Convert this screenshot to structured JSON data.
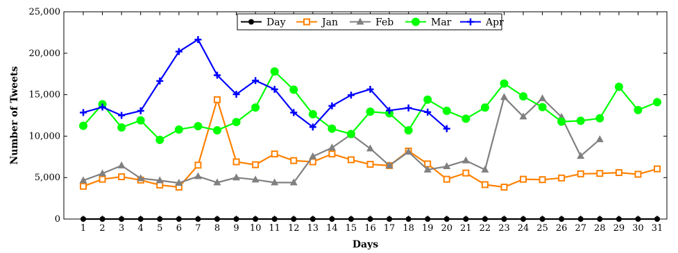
{
  "chart_data": {
    "type": "line",
    "title": "",
    "xlabel": "Days",
    "ylabel": "Number of Tweets",
    "xlim": [
      0.5,
      31.5
    ],
    "ylim": [
      0,
      25000
    ],
    "x_ticks": [
      "1",
      "2",
      "3",
      "4",
      "5",
      "6",
      "7",
      "8",
      "9",
      "10",
      "11",
      "12",
      "13",
      "14",
      "15",
      "16",
      "17",
      "18",
      "19",
      "20",
      "21",
      "22",
      "23",
      "24",
      "25",
      "26",
      "27",
      "28",
      "29",
      "30",
      "31"
    ],
    "y_ticks": [
      {
        "value": 0,
        "label": "0"
      },
      {
        "value": 5000,
        "label": "5,000"
      },
      {
        "value": 10000,
        "label": "10,000"
      },
      {
        "value": 15000,
        "label": "15,000"
      },
      {
        "value": 20000,
        "label": "20,000"
      },
      {
        "value": 25000,
        "label": "25,000"
      }
    ],
    "grid": false,
    "legend_position": "top-center",
    "series": [
      {
        "name": "Day",
        "color": "#000000",
        "marker": "circle",
        "x": [
          1,
          2,
          3,
          4,
          5,
          6,
          7,
          8,
          9,
          10,
          11,
          12,
          13,
          14,
          15,
          16,
          17,
          18,
          19,
          20,
          21,
          22,
          23,
          24,
          25,
          26,
          27,
          28,
          29,
          30,
          31
        ],
        "values": [
          0,
          0,
          0,
          0,
          0,
          0,
          0,
          0,
          0,
          0,
          0,
          0,
          0,
          0,
          0,
          0,
          0,
          0,
          0,
          0,
          0,
          0,
          0,
          0,
          0,
          0,
          0,
          0,
          0,
          0,
          0
        ]
      },
      {
        "name": "Jan",
        "color": "#ff8000",
        "marker": "square",
        "x": [
          1,
          2,
          3,
          4,
          5,
          6,
          7,
          8,
          9,
          10,
          11,
          12,
          13,
          14,
          15,
          16,
          17,
          18,
          19,
          20,
          21,
          22,
          23,
          24,
          25,
          26,
          27,
          28,
          29,
          30,
          31
        ],
        "values": [
          3950,
          4800,
          5100,
          4700,
          4100,
          3850,
          6500,
          14400,
          6900,
          6550,
          7850,
          7050,
          6900,
          7850,
          7150,
          6600,
          6450,
          8200,
          6650,
          4800,
          5550,
          4150,
          3850,
          4800,
          4750,
          4950,
          5450,
          5500,
          5600,
          5400,
          6050
        ]
      },
      {
        "name": "Feb",
        "color": "#808080",
        "marker": "triangle",
        "x": [
          1,
          2,
          3,
          4,
          5,
          6,
          7,
          8,
          9,
          10,
          11,
          12,
          13,
          14,
          15,
          16,
          17,
          18,
          19,
          20,
          21,
          22,
          23,
          24,
          25,
          26,
          27,
          28
        ],
        "values": [
          4650,
          5500,
          6450,
          4900,
          4650,
          4350,
          5150,
          4400,
          5000,
          4750,
          4400,
          4400,
          7550,
          8600,
          10200,
          8500,
          6450,
          8100,
          5950,
          6350,
          7050,
          5950,
          14700,
          12350,
          14550,
          12300,
          7600,
          9600
        ]
      },
      {
        "name": "Mar",
        "color": "#00ff00",
        "marker": "circle",
        "x": [
          1,
          2,
          3,
          4,
          5,
          6,
          7,
          8,
          9,
          10,
          11,
          12,
          13,
          14,
          15,
          16,
          17,
          18,
          19,
          20,
          21,
          22,
          23,
          24,
          25,
          26,
          27,
          28,
          29,
          30,
          31
        ],
        "values": [
          11250,
          13850,
          11050,
          11900,
          9550,
          10800,
          11200,
          10700,
          11700,
          13450,
          17800,
          15600,
          12650,
          10900,
          10250,
          12950,
          12750,
          10700,
          14400,
          13050,
          12100,
          13450,
          16350,
          14800,
          13500,
          11750,
          11850,
          12150,
          15950,
          13150,
          14100
        ]
      },
      {
        "name": "Apr",
        "color": "#0000ff",
        "marker": "plus",
        "x": [
          1,
          2,
          3,
          4,
          5,
          6,
          7,
          8,
          9,
          10,
          11,
          12,
          13,
          14,
          15,
          16,
          17,
          18,
          19,
          20
        ],
        "values": [
          12850,
          13500,
          12500,
          13050,
          16650,
          20200,
          21650,
          17350,
          15050,
          16700,
          15650,
          12850,
          11100,
          13650,
          14950,
          15650,
          13100,
          13400,
          12900,
          10900
        ]
      }
    ]
  }
}
